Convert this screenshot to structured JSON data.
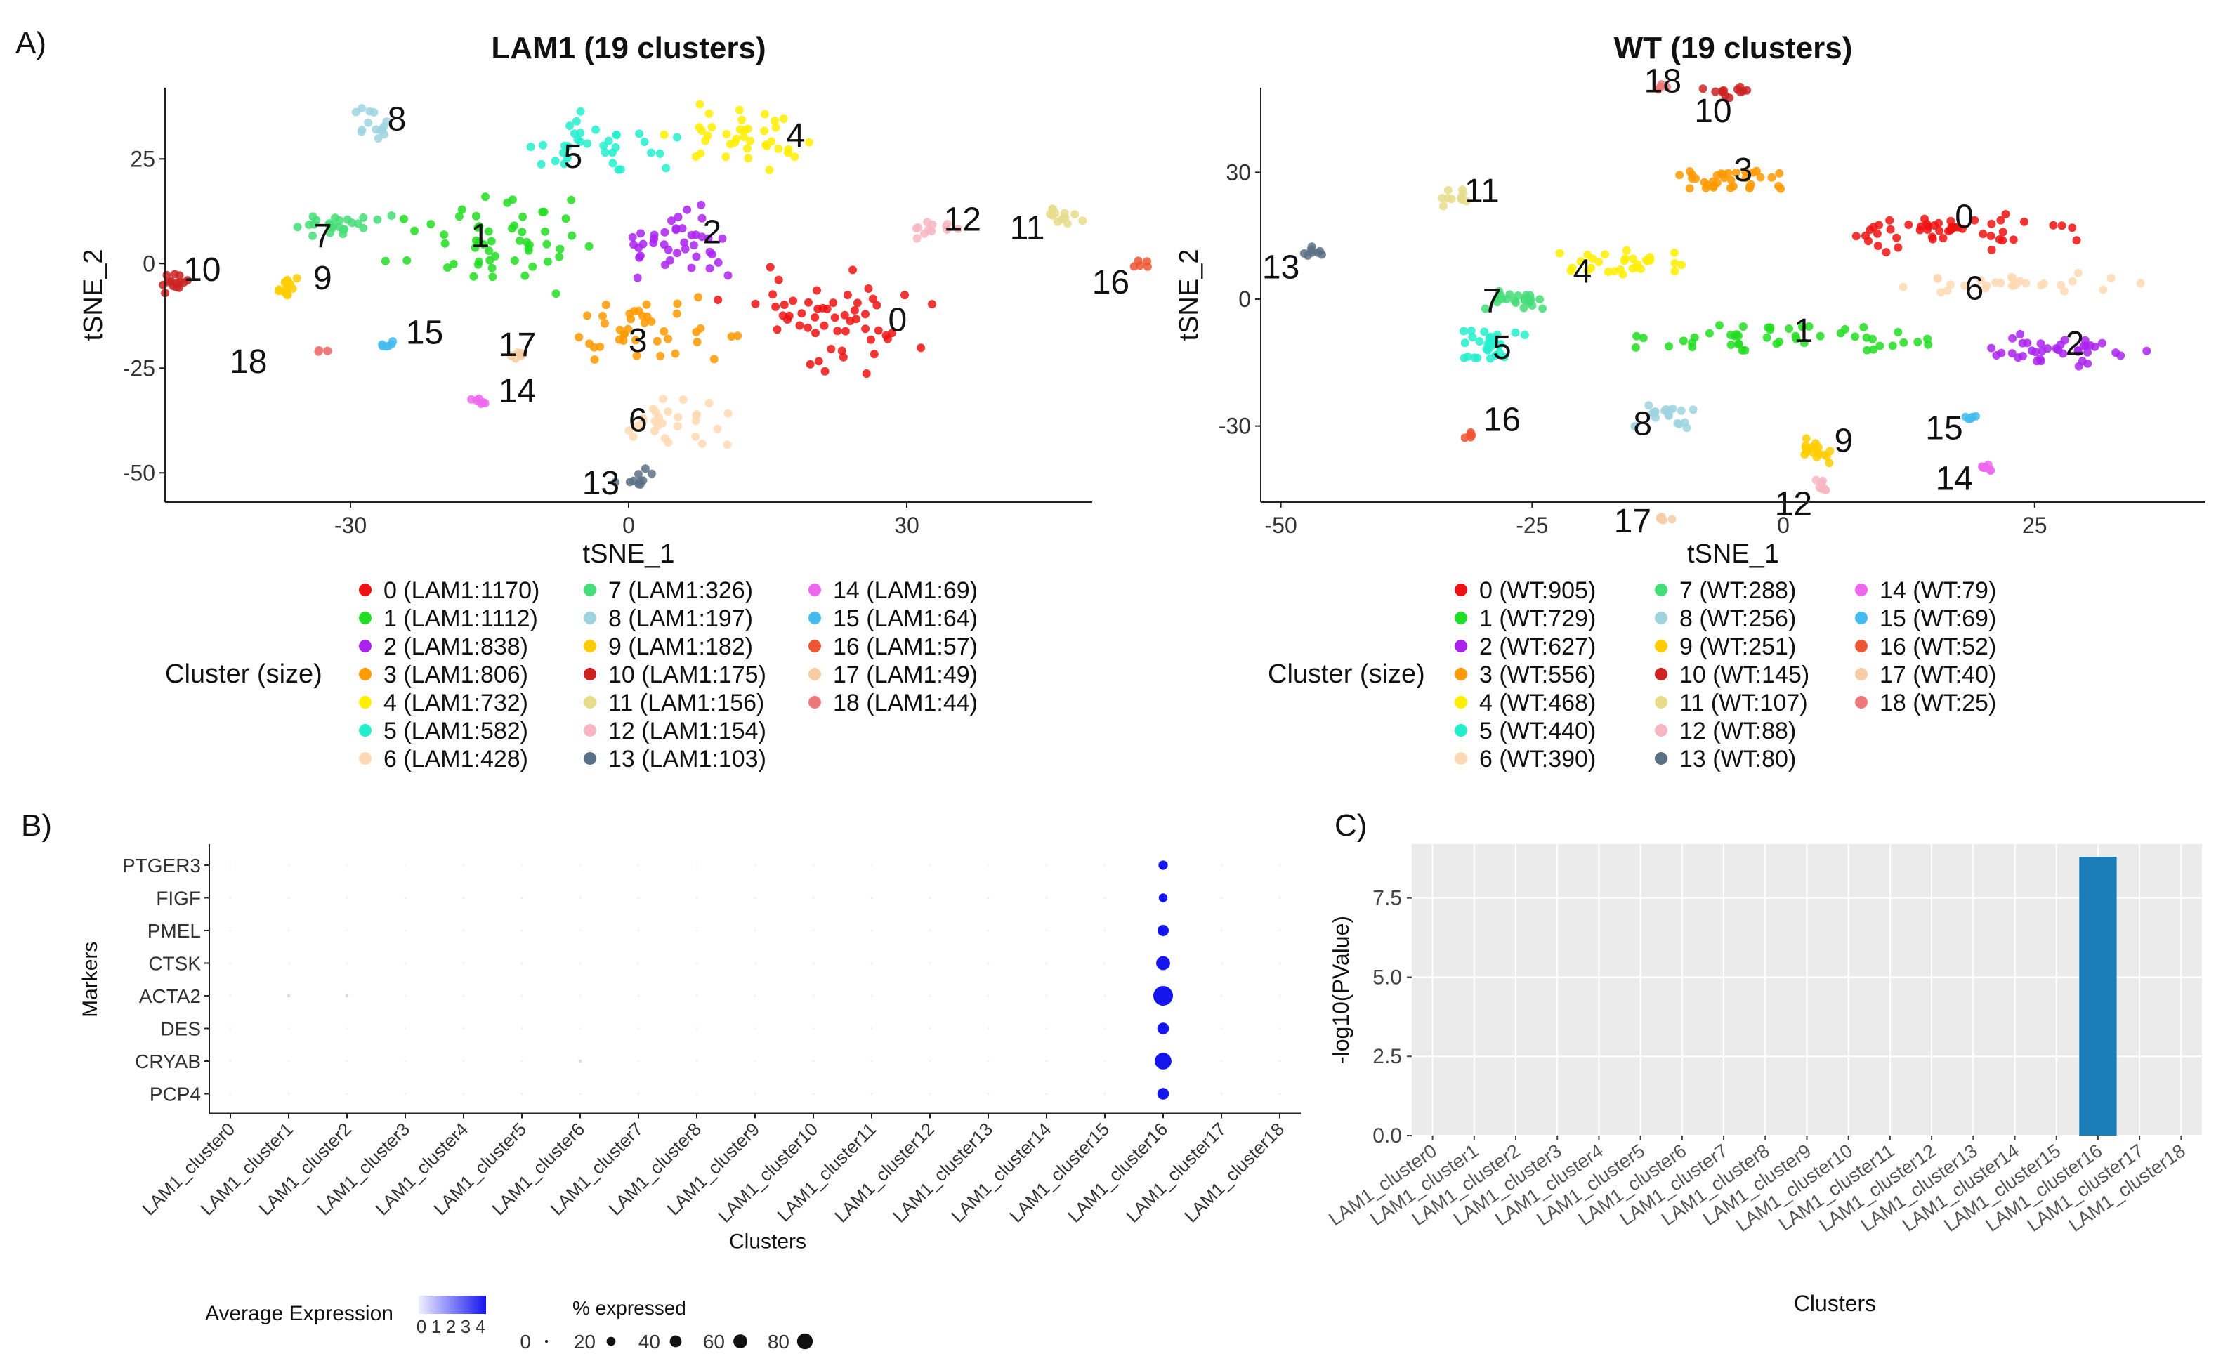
{
  "panel_labels": {
    "a": "A)",
    "b": "B)",
    "c": "C)"
  },
  "chart_data": [
    {
      "id": "lam1_tsne",
      "type": "scatter",
      "title": "LAM1 (19 clusters)",
      "xlabel": "tSNE_1",
      "ylabel": "tSNE_2",
      "xlim": [
        -50,
        50
      ],
      "ylim": [
        -57,
        42
      ],
      "xticks": [
        -30,
        0,
        30
      ],
      "yticks": [
        -50,
        -25,
        0,
        25
      ],
      "legend_title": "Cluster (size)",
      "clusters": [
        {
          "id": "0",
          "label": "0 (LAM1:1170)",
          "color": "#ee1111",
          "x": 22,
          "y": -14,
          "sx": 9,
          "sy": 11,
          "n": 55
        },
        {
          "id": "1",
          "label": "1 (LAM1:1112)",
          "color": "#22dd22",
          "x": -14,
          "y": 6,
          "sx": 9,
          "sy": 10,
          "n": 55
        },
        {
          "id": "2",
          "label": "2 (LAM1:838)",
          "color": "#aa22ee",
          "x": 5,
          "y": 5,
          "sx": 7,
          "sy": 7,
          "n": 40
        },
        {
          "id": "3",
          "label": "3 (LAM1:806)",
          "color": "#ff9900",
          "x": 3,
          "y": -17,
          "sx": 8,
          "sy": 7,
          "n": 40
        },
        {
          "id": "4",
          "label": "4 (LAM1:732)",
          "color": "#ffee00",
          "x": 13,
          "y": 30,
          "sx": 7,
          "sy": 6,
          "n": 38
        },
        {
          "id": "5",
          "label": "5 (LAM1:582)",
          "color": "#22eecc",
          "x": -3,
          "y": 28,
          "sx": 8,
          "sy": 7,
          "n": 34
        },
        {
          "id": "6",
          "label": "6 (LAM1:428)",
          "color": "#ffd9b3",
          "x": 4,
          "y": -38,
          "sx": 6,
          "sy": 5,
          "n": 28
        },
        {
          "id": "7",
          "label": "7 (LAM1:326)",
          "color": "#44dd77",
          "x": -32,
          "y": 9,
          "sx": 5,
          "sy": 3,
          "n": 24
        },
        {
          "id": "8",
          "label": "8 (LAM1:197)",
          "color": "#9ed3e0",
          "x": -28,
          "y": 33,
          "sx": 2,
          "sy": 4,
          "n": 14
        },
        {
          "id": "9",
          "label": "9 (LAM1:182)",
          "color": "#ffcc00",
          "x": -37,
          "y": -6,
          "sx": 1.5,
          "sy": 3,
          "n": 14
        },
        {
          "id": "10",
          "label": "10 (LAM1:175)",
          "color": "#cc2222",
          "x": -49,
          "y": -5,
          "sx": 1.5,
          "sy": 3,
          "n": 14
        },
        {
          "id": "11",
          "label": "11 (LAM1:156)",
          "color": "#e6dc8c",
          "x": 47,
          "y": 11,
          "sx": 1.5,
          "sy": 3,
          "n": 12
        },
        {
          "id": "12",
          "label": "12 (LAM1:154)",
          "color": "#f7b6c2",
          "x": 33,
          "y": 8,
          "sx": 3,
          "sy": 2,
          "n": 12
        },
        {
          "id": "13",
          "label": "13 (LAM1:103)",
          "color": "#5a7085",
          "x": 1,
          "y": -51,
          "sx": 2,
          "sy": 2,
          "n": 10
        },
        {
          "id": "14",
          "label": "14 (LAM1:69)",
          "color": "#ee66ee",
          "x": -16,
          "y": -33,
          "sx": 1.5,
          "sy": 0.8,
          "n": 6
        },
        {
          "id": "15",
          "label": "15 (LAM1:64)",
          "color": "#44bbee",
          "x": -26,
          "y": -19,
          "sx": 1.5,
          "sy": 1,
          "n": 6
        },
        {
          "id": "16",
          "label": "16 (LAM1:57)",
          "color": "#ee5533",
          "x": 55,
          "y": 0,
          "sx": 1.2,
          "sy": 1,
          "n": 5
        },
        {
          "id": "17",
          "label": "17 (LAM1:49)",
          "color": "#f5cca3",
          "x": -12,
          "y": -22,
          "sx": 1,
          "sy": 1,
          "n": 5
        },
        {
          "id": "18",
          "label": "18 (LAM1:44)",
          "color": "#ee7777",
          "x": -33,
          "y": -21,
          "sx": 1,
          "sy": 0.7,
          "n": 5
        }
      ],
      "cluster_labels": [
        {
          "text": "0",
          "x": 29,
          "y": -14
        },
        {
          "text": "1",
          "x": -16,
          "y": 6
        },
        {
          "text": "2",
          "x": 9,
          "y": 7
        },
        {
          "text": "3",
          "x": 1,
          "y": -19
        },
        {
          "text": "4",
          "x": 18,
          "y": 30
        },
        {
          "text": "5",
          "x": -6,
          "y": 25
        },
        {
          "text": "6",
          "x": 1,
          "y": -38
        },
        {
          "text": "7",
          "x": -33,
          "y": 6
        },
        {
          "text": "8",
          "x": -25,
          "y": 34
        },
        {
          "text": "9",
          "x": -33,
          "y": -4
        },
        {
          "text": "10",
          "x": -46,
          "y": -2
        },
        {
          "text": "11",
          "x": 43,
          "y": 8
        },
        {
          "text": "12",
          "x": 36,
          "y": 10
        },
        {
          "text": "13",
          "x": -3,
          "y": -53
        },
        {
          "text": "14",
          "x": -12,
          "y": -31
        },
        {
          "text": "15",
          "x": -22,
          "y": -17
        },
        {
          "text": "16",
          "x": 52,
          "y": -5
        },
        {
          "text": "17",
          "x": -12,
          "y": -20
        },
        {
          "text": "18",
          "x": -41,
          "y": -24
        }
      ]
    },
    {
      "id": "wt_tsne",
      "type": "scatter",
      "title": "WT (19 clusters)",
      "xlabel": "tSNE_1",
      "ylabel": "tSNE_2",
      "xlim": [
        -52,
        42
      ],
      "ylim": [
        -48,
        50
      ],
      "xticks": [
        -50,
        -25,
        0,
        25
      ],
      "yticks": [
        -30,
        0,
        30
      ],
      "legend_title": "Cluster (size)",
      "clusters": [
        {
          "id": "0",
          "label": "0 (WT:905)",
          "color": "#ee1111",
          "x": 16,
          "y": 16,
          "sx": 11,
          "sy": 4,
          "n": 50
        },
        {
          "id": "1",
          "label": "1 (WT:729)",
          "color": "#22dd22",
          "x": 1,
          "y": -9,
          "sx": 12,
          "sy": 3.5,
          "n": 48
        },
        {
          "id": "2",
          "label": "2 (WT:627)",
          "color": "#aa22ee",
          "x": 28,
          "y": -12,
          "sx": 7,
          "sy": 4,
          "n": 38
        },
        {
          "id": "3",
          "label": "3 (WT:556)",
          "color": "#ff9900",
          "x": -5,
          "y": 28,
          "sx": 6,
          "sy": 3,
          "n": 34
        },
        {
          "id": "4",
          "label": "4 (WT:468)",
          "color": "#ffee00",
          "x": -16,
          "y": 8,
          "sx": 6,
          "sy": 3.5,
          "n": 30
        },
        {
          "id": "5",
          "label": "5 (WT:440)",
          "color": "#22eecc",
          "x": -29,
          "y": -11,
          "sx": 4,
          "sy": 4,
          "n": 28
        },
        {
          "id": "6",
          "label": "6 (WT:390)",
          "color": "#ffd9b3",
          "x": 22,
          "y": 4,
          "sx": 10,
          "sy": 2.5,
          "n": 28
        },
        {
          "id": "7",
          "label": "7 (WT:288)",
          "color": "#44dd77",
          "x": -26,
          "y": 0,
          "sx": 4,
          "sy": 2.5,
          "n": 22
        },
        {
          "id": "8",
          "label": "8 (WT:256)",
          "color": "#9ed3e0",
          "x": -12,
          "y": -27,
          "sx": 3,
          "sy": 3,
          "n": 20
        },
        {
          "id": "9",
          "label": "9 (WT:251)",
          "color": "#ffcc00",
          "x": 2,
          "y": -36,
          "sx": 4,
          "sy": 2,
          "n": 18
        },
        {
          "id": "10",
          "label": "10 (WT:145)",
          "color": "#cc2222",
          "x": -5,
          "y": 49,
          "sx": 3,
          "sy": 1.2,
          "n": 12
        },
        {
          "id": "11",
          "label": "11 (WT:107)",
          "color": "#e6dc8c",
          "x": -32,
          "y": 24,
          "sx": 2,
          "sy": 1.5,
          "n": 10
        },
        {
          "id": "12",
          "label": "12 (WT:88)",
          "color": "#f7b6c2",
          "x": 4,
          "y": -44,
          "sx": 1,
          "sy": 2,
          "n": 8
        },
        {
          "id": "13",
          "label": "13 (WT:80)",
          "color": "#5a7085",
          "x": -47,
          "y": 11,
          "sx": 1,
          "sy": 2,
          "n": 8
        },
        {
          "id": "14",
          "label": "14 (WT:79)",
          "color": "#ee66ee",
          "x": 20,
          "y": -40,
          "sx": 1.5,
          "sy": 1,
          "n": 7
        },
        {
          "id": "15",
          "label": "15 (WT:69)",
          "color": "#44bbee",
          "x": 19,
          "y": -28,
          "sx": 1.5,
          "sy": 1,
          "n": 6
        },
        {
          "id": "16",
          "label": "16 (WT:52)",
          "color": "#ee5533",
          "x": -31,
          "y": -32,
          "sx": 0.6,
          "sy": 1,
          "n": 5
        },
        {
          "id": "17",
          "label": "17 (WT:40)",
          "color": "#f5cca3",
          "x": -12,
          "y": -52,
          "sx": 1,
          "sy": 1,
          "n": 5
        },
        {
          "id": "18",
          "label": "18 (WT:25)",
          "color": "#ee7777",
          "x": -12,
          "y": 50,
          "sx": 1,
          "sy": 1,
          "n": 4
        }
      ],
      "cluster_labels": [
        {
          "text": "0",
          "x": 18,
          "y": 19
        },
        {
          "text": "1",
          "x": 2,
          "y": -8
        },
        {
          "text": "2",
          "x": 29,
          "y": -11
        },
        {
          "text": "3",
          "x": -4,
          "y": 30
        },
        {
          "text": "4",
          "x": -20,
          "y": 6
        },
        {
          "text": "5",
          "x": -28,
          "y": -12
        },
        {
          "text": "6",
          "x": 19,
          "y": 2
        },
        {
          "text": "7",
          "x": -29,
          "y": -1
        },
        {
          "text": "8",
          "x": -14,
          "y": -30
        },
        {
          "text": "9",
          "x": 6,
          "y": -34
        },
        {
          "text": "10",
          "x": -7,
          "y": 44
        },
        {
          "text": "11",
          "x": -30,
          "y": 25
        },
        {
          "text": "12",
          "x": 1,
          "y": -49
        },
        {
          "text": "13",
          "x": -50,
          "y": 7
        },
        {
          "text": "14",
          "x": 17,
          "y": -43
        },
        {
          "text": "15",
          "x": 16,
          "y": -31
        },
        {
          "text": "16",
          "x": -28,
          "y": -29
        },
        {
          "text": "17",
          "x": -15,
          "y": -53
        },
        {
          "text": "18",
          "x": -12,
          "y": 51
        }
      ]
    },
    {
      "id": "dotplot",
      "type": "scatter",
      "xlabel": "Clusters",
      "ylabel": "Markers",
      "categories": [
        "LAM1_cluster0",
        "LAM1_cluster1",
        "LAM1_cluster2",
        "LAM1_cluster3",
        "LAM1_cluster4",
        "LAM1_cluster5",
        "LAM1_cluster6",
        "LAM1_cluster7",
        "LAM1_cluster8",
        "LAM1_cluster9",
        "LAM1_cluster10",
        "LAM1_cluster11",
        "LAM1_cluster12",
        "LAM1_cluster13",
        "LAM1_cluster14",
        "LAM1_cluster15",
        "LAM1_cluster16",
        "LAM1_cluster17",
        "LAM1_cluster18"
      ],
      "markers": [
        "PTGER3",
        "FIGF",
        "PMEL",
        "CTSK",
        "ACTA2",
        "DES",
        "CRYAB",
        "PCP4"
      ],
      "cluster16_pct_expressed": [
        12,
        10,
        20,
        35,
        80,
        22,
        55,
        22
      ],
      "cluster16_avg_expression": [
        4,
        4,
        4,
        4,
        4,
        4,
        4,
        4
      ],
      "faint_dots": [
        {
          "marker": "ACTA2",
          "cluster": "LAM1_cluster1"
        },
        {
          "marker": "ACTA2",
          "cluster": "LAM1_cluster2"
        },
        {
          "marker": "CRYAB",
          "cluster": "LAM1_cluster6"
        }
      ],
      "color_legend": {
        "title": "Average Expression",
        "ticks": [
          "0",
          "1",
          "2",
          "3",
          "4"
        ],
        "low": "#f0f0ff",
        "high": "#1515ee"
      },
      "size_legend": {
        "title": "% expressed",
        "values": [
          0,
          20,
          40,
          60,
          80
        ]
      }
    },
    {
      "id": "barplot",
      "type": "bar",
      "xlabel": "Clusters",
      "ylabel": "-log10(PValue)",
      "ylim": [
        0,
        9.2
      ],
      "yticks": [
        0.0,
        2.5,
        5.0,
        7.5
      ],
      "ytick_labels": [
        "0.0",
        "2.5",
        "5.0",
        "7.5"
      ],
      "categories": [
        "LAM1_cluster0",
        "LAM1_cluster1",
        "LAM1_cluster2",
        "LAM1_cluster3",
        "LAM1_cluster4",
        "LAM1_cluster5",
        "LAM1_cluster6",
        "LAM1_cluster7",
        "LAM1_cluster8",
        "LAM1_cluster9",
        "LAM1_cluster10",
        "LAM1_cluster11",
        "LAM1_cluster12",
        "LAM1_cluster13",
        "LAM1_cluster14",
        "LAM1_cluster15",
        "LAM1_cluster16",
        "LAM1_cluster17",
        "LAM1_cluster18"
      ],
      "values": [
        0,
        0,
        0,
        0,
        0,
        0,
        0,
        0,
        0,
        0,
        0,
        0,
        0,
        0,
        0,
        0,
        8.8,
        0,
        0
      ],
      "bar_color": "#1a7db8",
      "panel_bg": "#ebebeb"
    }
  ]
}
